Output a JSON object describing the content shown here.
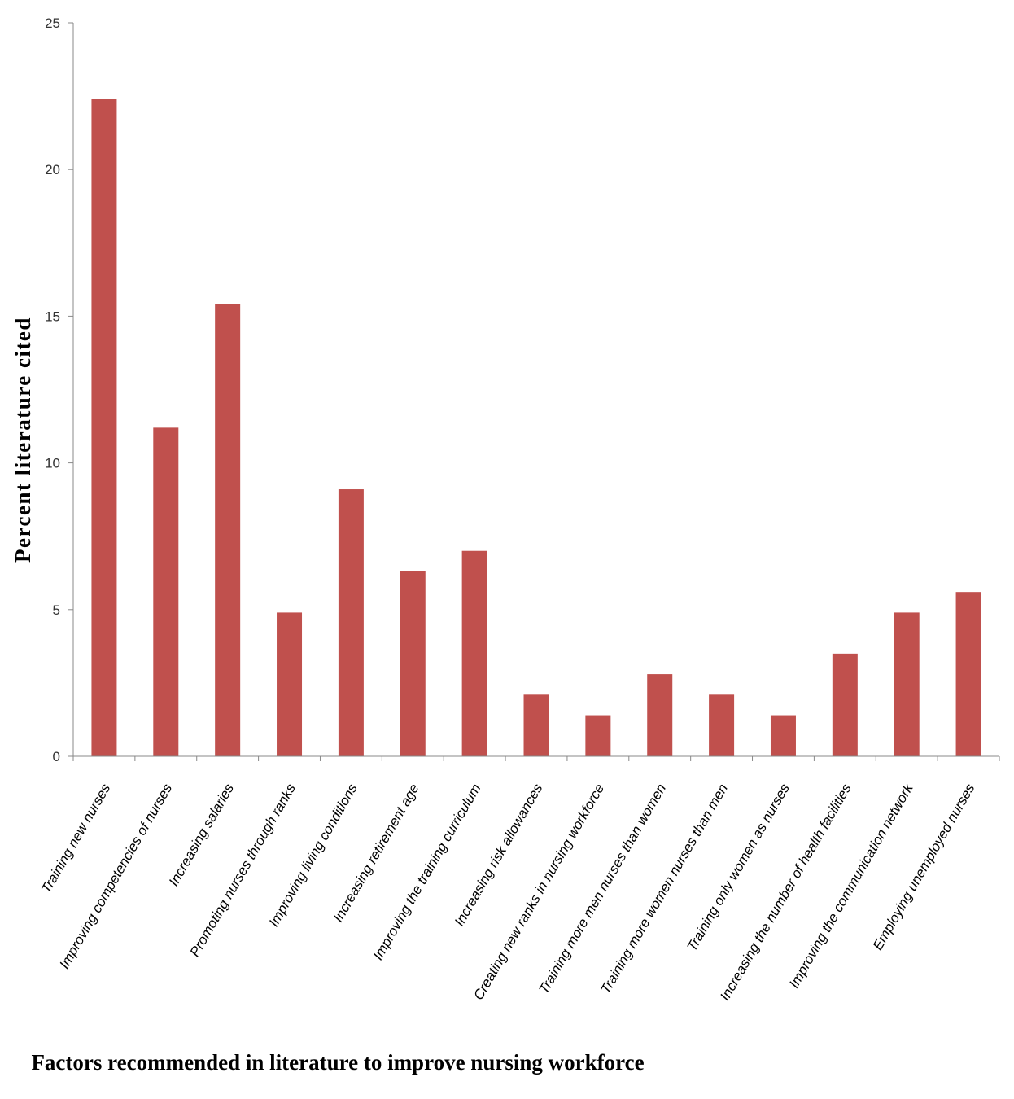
{
  "chart_data": {
    "type": "bar",
    "title": "",
    "xlabel": "Factors recommended in literature to improve nursing workforce",
    "ylabel": "Percent literature cited",
    "ylim": [
      0,
      25
    ],
    "yticks": [
      0,
      5,
      10,
      15,
      20,
      25
    ],
    "grid": false,
    "legend": "none",
    "bar_color": "#c0504d",
    "categories": [
      "Training new nurses",
      "Improving competencies of  nurses",
      "Increasing salaries",
      "Promoting nurses through ranks",
      "Improving living conditions",
      "Increasing retirement age",
      "Improving the training curriculum",
      "Increasing risk allowances",
      "Creating new ranks in nursing workforce",
      "Training more men nurses than women",
      "Training more women nurses than men",
      "Training only women as nurses",
      "Increasing the number of health facilities",
      "Improving the communication network",
      "Employing unemployed nurses"
    ],
    "values": [
      22.4,
      11.2,
      15.4,
      4.9,
      9.1,
      6.3,
      7.0,
      2.1,
      1.4,
      2.8,
      2.1,
      1.4,
      3.5,
      4.9,
      5.6
    ]
  }
}
